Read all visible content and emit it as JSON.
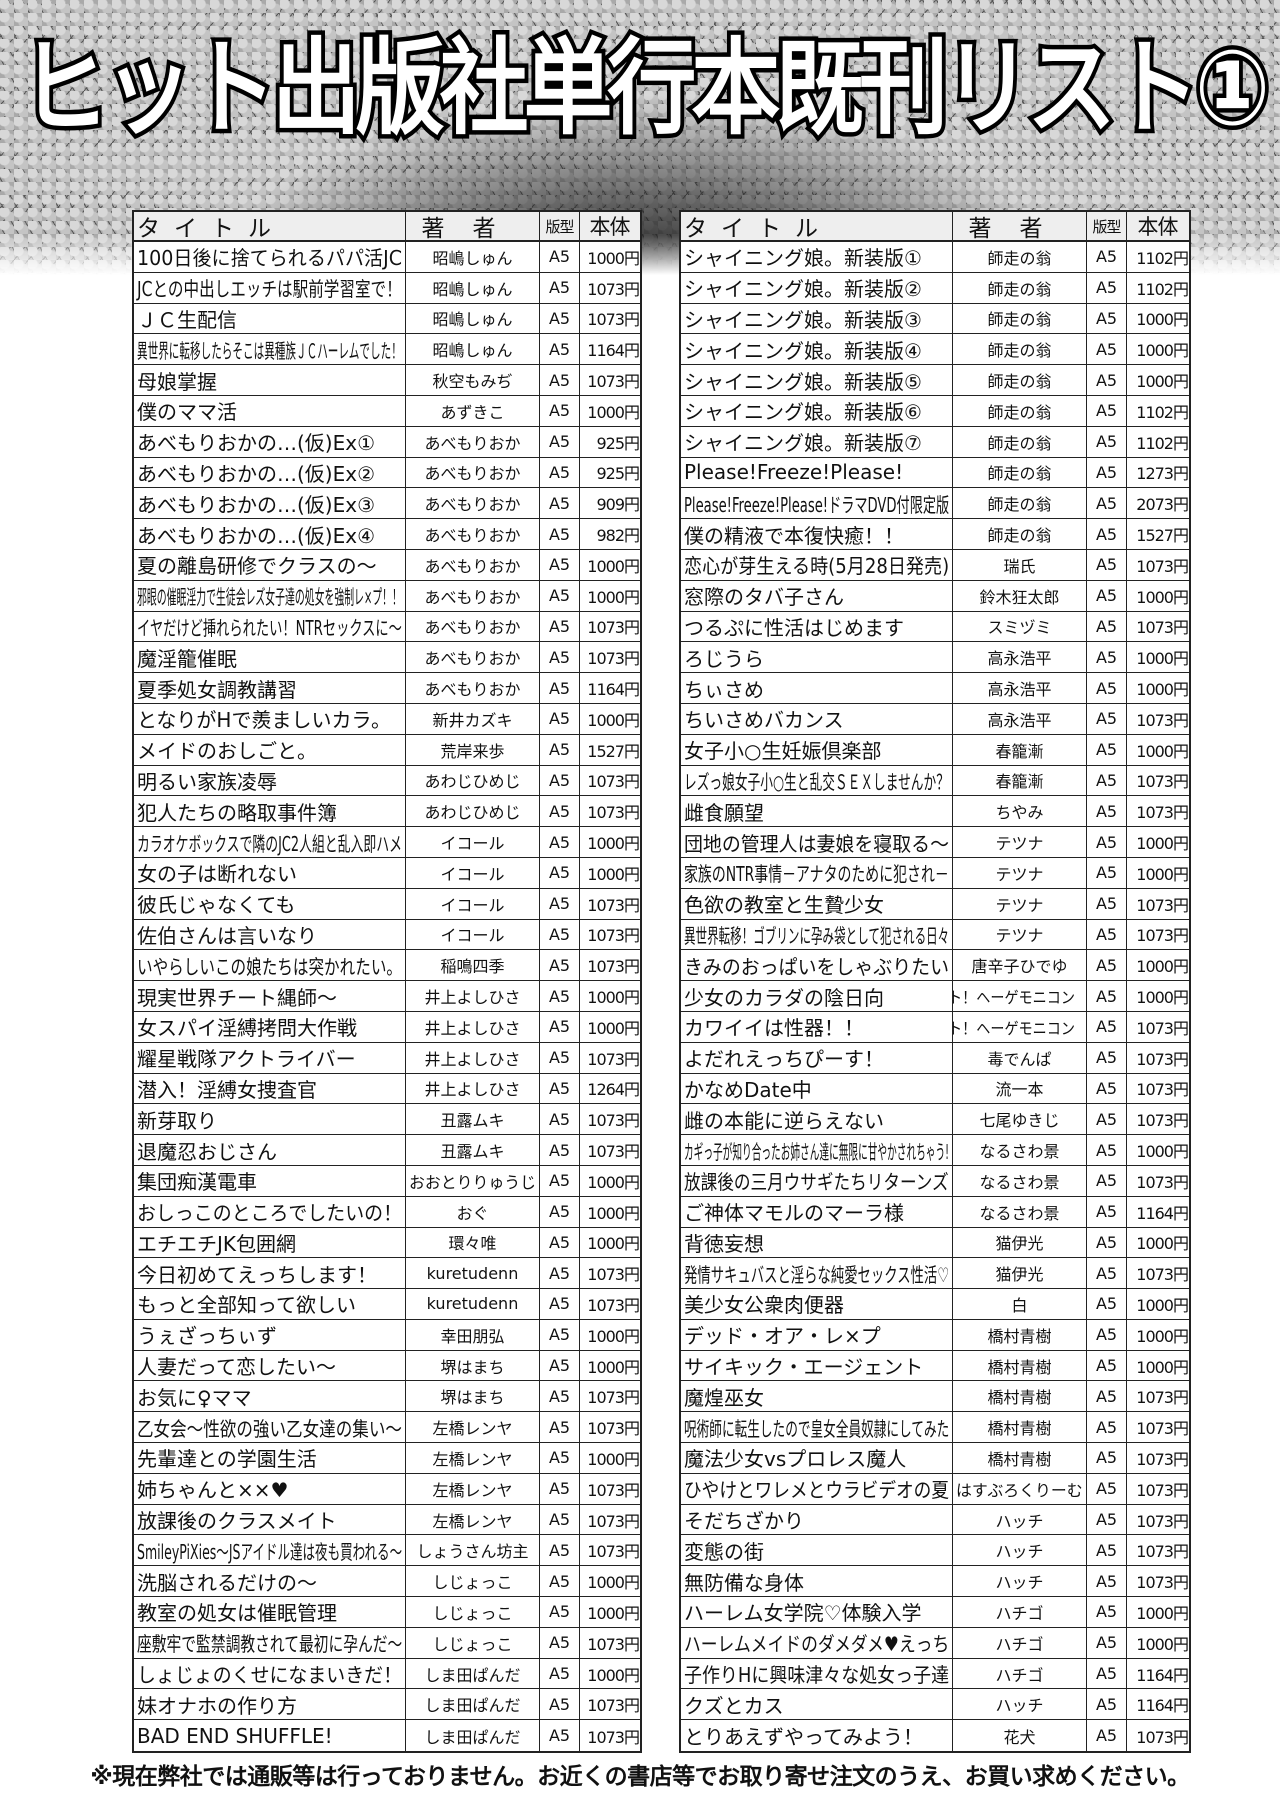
{
  "title": "ヒット出版社単行本既刊リスト①",
  "headers": {
    "title": "タイトル",
    "author": "著者",
    "format": "版型",
    "price": "本体"
  },
  "left_rows": [
    [
      "100日後に捨てられるパパ活JC",
      "昭嶋しゅん",
      "A5",
      "1000円"
    ],
    [
      "JCとの中出しエッチは駅前学習室で！",
      "昭嶋しゅん",
      "A5",
      "1073円"
    ],
    [
      "ＪＣ生配信",
      "昭嶋しゅん",
      "A5",
      "1073円"
    ],
    [
      "異世界に転移したらそこは異種族ＪＣハーレムでした！",
      "昭嶋しゅん",
      "A5",
      "1164円"
    ],
    [
      "母娘掌握",
      "秋空もみぢ",
      "A5",
      "1073円"
    ],
    [
      "僕のママ活",
      "あずきこ",
      "A5",
      "1000円"
    ],
    [
      "あべもりおかの…(仮)Ex①",
      "あべもりおか",
      "A5",
      "925円"
    ],
    [
      "あべもりおかの…(仮)Ex②",
      "あべもりおか",
      "A5",
      "925円"
    ],
    [
      "あべもりおかの…(仮)Ex③",
      "あべもりおか",
      "A5",
      "909円"
    ],
    [
      "あべもりおかの…(仮)Ex④",
      "あべもりおか",
      "A5",
      "982円"
    ],
    [
      "夏の離島研修でクラスの～",
      "あべもりおか",
      "A5",
      "1000円"
    ],
    [
      "邪眼の催眠淫力で生徒会レズ女子達の処女を強制レ×プ！！",
      "あべもりおか",
      "A5",
      "1000円"
    ],
    [
      "イヤだけど挿れられたい！NTRセックスに～",
      "あべもりおか",
      "A5",
      "1073円"
    ],
    [
      "魔淫籠催眠",
      "あべもりおか",
      "A5",
      "1073円"
    ],
    [
      "夏季処女調教講習",
      "あべもりおか",
      "A5",
      "1164円"
    ],
    [
      "となりがHで羨ましいカラ。",
      "新井カズキ",
      "A5",
      "1000円"
    ],
    [
      "メイドのおしごと。",
      "荒岸来歩",
      "A5",
      "1527円"
    ],
    [
      "明るい家族凌辱",
      "あわじひめじ",
      "A5",
      "1073円"
    ],
    [
      "犯人たちの略取事件簿",
      "あわじひめじ",
      "A5",
      "1073円"
    ],
    [
      "カラオケボックスで隣のJC2人組と乱入即ハメ",
      "イコール",
      "A5",
      "1000円"
    ],
    [
      "女の子は断れない",
      "イコール",
      "A5",
      "1000円"
    ],
    [
      "彼氏じゃなくても",
      "イコール",
      "A5",
      "1073円"
    ],
    [
      "佐伯さんは言いなり",
      "イコール",
      "A5",
      "1073円"
    ],
    [
      "いやらしいこの娘たちは突かれたい。",
      "稲鳴四季",
      "A5",
      "1073円"
    ],
    [
      "現実世界チート縄師～",
      "井上よしひさ",
      "A5",
      "1000円"
    ],
    [
      "女スパイ淫縛拷問大作戦",
      "井上よしひさ",
      "A5",
      "1000円"
    ],
    [
      "耀星戦隊アクトライバー",
      "井上よしひさ",
      "A5",
      "1073円"
    ],
    [
      "潜入！淫縛女捜査官",
      "井上よしひさ",
      "A5",
      "1264円"
    ],
    [
      "新芽取り",
      "丑露ムキ",
      "A5",
      "1073円"
    ],
    [
      "退魔忍おじさん",
      "丑露ムキ",
      "A5",
      "1073円"
    ],
    [
      "集団痴漢電車",
      "おおとりりゅうじ",
      "A5",
      "1000円"
    ],
    [
      "おしっこのところでしたいの！",
      "おぐ",
      "A5",
      "1000円"
    ],
    [
      "エチエチJK包囲網",
      "環々唯",
      "A5",
      "1000円"
    ],
    [
      "今日初めてえっちします！",
      "kuretudenn",
      "A5",
      "1073円"
    ],
    [
      "もっと全部知って欲しい",
      "kuretudenn",
      "A5",
      "1073円"
    ],
    [
      "うぇざっちぃず",
      "幸田朋弘",
      "A5",
      "1000円"
    ],
    [
      "人妻だって恋したい～",
      "堺はまち",
      "A5",
      "1000円"
    ],
    [
      "お気に♀ママ",
      "堺はまち",
      "A5",
      "1073円"
    ],
    [
      "乙女会～性欲の強い乙女達の集い～",
      "左橋レンヤ",
      "A5",
      "1073円"
    ],
    [
      "先輩達との学園生活",
      "左橋レンヤ",
      "A5",
      "1000円"
    ],
    [
      "姉ちゃんと××♥",
      "左橋レンヤ",
      "A5",
      "1073円"
    ],
    [
      "放課後のクラスメイト",
      "左橋レンヤ",
      "A5",
      "1073円"
    ],
    [
      "SmileyPiXies～JSアイドル達は夜も買われる～",
      "しょうさん坊主",
      "A5",
      "1073円"
    ],
    [
      "洗脳されるだけの～",
      "しじょっこ",
      "A5",
      "1000円"
    ],
    [
      "教室の処女は催眠管理",
      "しじょっこ",
      "A5",
      "1000円"
    ],
    [
      "座敷牢で監禁調教されて最初に孕んだ～",
      "しじょっこ",
      "A5",
      "1073円"
    ],
    [
      "しょじょのくせになまいきだ！",
      "しま田ぱんだ",
      "A5",
      "1000円"
    ],
    [
      "妹オナホの作り方",
      "しま田ぱんだ",
      "A5",
      "1073円"
    ],
    [
      "BAD END SHUFFLE!",
      "しま田ぱんだ",
      "A5",
      "1073円"
    ]
  ],
  "right_rows": [
    [
      "シャイニング娘。新装版①",
      "師走の翁",
      "A5",
      "1102円"
    ],
    [
      "シャイニング娘。新装版②",
      "師走の翁",
      "A5",
      "1102円"
    ],
    [
      "シャイニング娘。新装版③",
      "師走の翁",
      "A5",
      "1000円"
    ],
    [
      "シャイニング娘。新装版④",
      "師走の翁",
      "A5",
      "1000円"
    ],
    [
      "シャイニング娘。新装版⑤",
      "師走の翁",
      "A5",
      "1000円"
    ],
    [
      "シャイニング娘。新装版⑥",
      "師走の翁",
      "A5",
      "1102円"
    ],
    [
      "シャイニング娘。新装版⑦",
      "師走の翁",
      "A5",
      "1102円"
    ],
    [
      "Please!Freeze!Please!",
      "師走の翁",
      "A5",
      "1273円"
    ],
    [
      "Please!Freeze!Please!ドラマDVD付限定版",
      "師走の翁",
      "A5",
      "2073円"
    ],
    [
      "僕の精液で本復快癒！！",
      "師走の翁",
      "A5",
      "1527円"
    ],
    [
      "恋心が芽生える時(5月28日発売)",
      "瑞氏",
      "A5",
      "1073円"
    ],
    [
      "窓際のタバ子さん",
      "鈴木狂太郎",
      "A5",
      "1000円"
    ],
    [
      "つるぷに性活はじめます",
      "スミヅミ",
      "A5",
      "1073円"
    ],
    [
      "ろじうら",
      "高永浩平",
      "A5",
      "1000円"
    ],
    [
      "ちぃさめ",
      "高永浩平",
      "A5",
      "1000円"
    ],
    [
      "ちいさめバカンス",
      "高永浩平",
      "A5",
      "1073円"
    ],
    [
      "女子小○生妊娠倶楽部",
      "春籠漸",
      "A5",
      "1000円"
    ],
    [
      "レズっ娘女子小○生と乱交ＳＥＸしませんか？",
      "春籠漸",
      "A5",
      "1073円"
    ],
    [
      "雌食願望",
      "ちやみ",
      "A5",
      "1073円"
    ],
    [
      "団地の管理人は妻娘を寝取る～",
      "テツナ",
      "A5",
      "1000円"
    ],
    [
      "家族のNTR事情－アナタのために犯され－",
      "テツナ",
      "A5",
      "1000円"
    ],
    [
      "色欲の教室と生贄少女",
      "テツナ",
      "A5",
      "1073円"
    ],
    [
      "異世界転移！ゴブリンに孕み袋として犯される日々",
      "テツナ",
      "A5",
      "1073円"
    ],
    [
      "きみのおっぱいをしゃぶりたい",
      "唐辛子ひでゆ",
      "A5",
      "1000円"
    ],
    [
      "少女のカラダの陰日向",
      "ト！ヘーゲモニコン",
      "A5",
      "1000円"
    ],
    [
      "カワイイは性器！！",
      "ト！ヘーゲモニコン",
      "A5",
      "1073円"
    ],
    [
      "よだれえっちぴーす！",
      "毒でんぱ",
      "A5",
      "1073円"
    ],
    [
      "かなめDate中",
      "流一本",
      "A5",
      "1073円"
    ],
    [
      "雌の本能に逆らえない",
      "七尾ゆきじ",
      "A5",
      "1073円"
    ],
    [
      "カギっ子が知り合ったお姉さん達に無限に甘やかされちゃう!",
      "なるさわ景",
      "A5",
      "1000円"
    ],
    [
      "放課後の三月ウサギたちリターンズ",
      "なるさわ景",
      "A5",
      "1073円"
    ],
    [
      "ご神体マモルのマーラ様",
      "なるさわ景",
      "A5",
      "1164円"
    ],
    [
      "背徳妄想",
      "猫伊光",
      "A5",
      "1000円"
    ],
    [
      "発情サキュバスと淫らな純愛セックス性活♡",
      "猫伊光",
      "A5",
      "1073円"
    ],
    [
      "美少女公衆肉便器",
      "白",
      "A5",
      "1000円"
    ],
    [
      "デッド・オア・レ×プ",
      "橋村青樹",
      "A5",
      "1000円"
    ],
    [
      "サイキック・エージェント",
      "橋村青樹",
      "A5",
      "1000円"
    ],
    [
      "魔煌巫女",
      "橋村青樹",
      "A5",
      "1073円"
    ],
    [
      "呪術師に転生したので皇女全員奴隷にしてみた",
      "橋村青樹",
      "A5",
      "1073円"
    ],
    [
      "魔法少女vsプロレス魔人",
      "橋村青樹",
      "A5",
      "1073円"
    ],
    [
      "ひやけとワレメとウラビデオの夏",
      "はすぶろくりーむ",
      "A5",
      "1073円"
    ],
    [
      "そだちざかり",
      "ハッチ",
      "A5",
      "1073円"
    ],
    [
      "変態の街",
      "ハッチ",
      "A5",
      "1073円"
    ],
    [
      "無防備な身体",
      "ハッチ",
      "A5",
      "1073円"
    ],
    [
      "ハーレム女学院♡体験入学",
      "ハチゴ",
      "A5",
      "1000円"
    ],
    [
      "ハーレムメイドのダメダメ♥えっち",
      "ハチゴ",
      "A5",
      "1000円"
    ],
    [
      "子作りHに興味津々な処女っ子達",
      "ハチゴ",
      "A5",
      "1164円"
    ],
    [
      "クズとカス",
      "ハッチ",
      "A5",
      "1164円"
    ],
    [
      "とりあえずやってみよう！",
      "花犬",
      "A5",
      "1073円"
    ]
  ],
  "footer": "※現在弊社では通販等は行っておりません。お近くの書店等でお取り寄せ注文のうえ、お買い求めください。"
}
